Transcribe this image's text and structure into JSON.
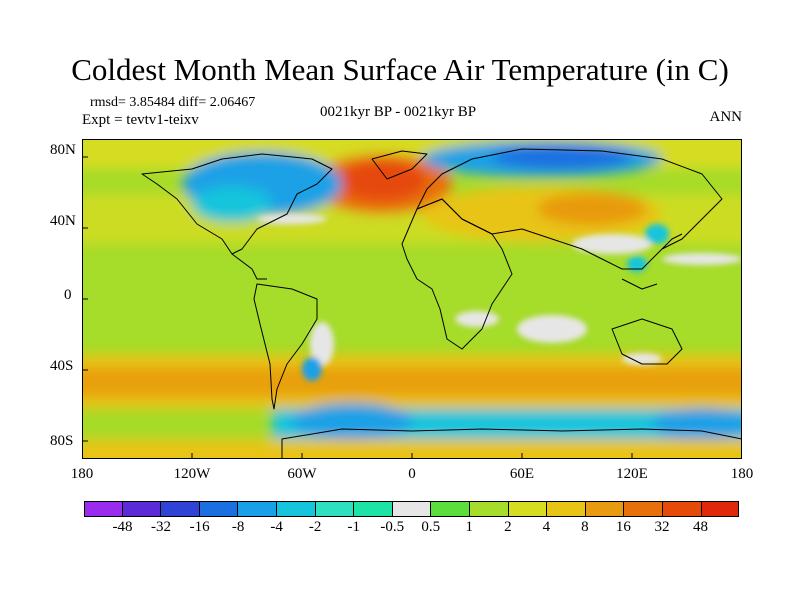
{
  "title": "Coldest Month Mean Surface Air Temperature (in C)",
  "stats": {
    "rmsd_label": "rmsd=",
    "rmsd": "3.85484",
    "diff_label": "diff=",
    "diff": "2.06467",
    "expt": "Expt = tevtv1-teixv"
  },
  "center_label": "0021kyr BP - 0021kyr BP",
  "season": "ANN",
  "axes": {
    "y_ticks": [
      "80N",
      "40N",
      "0",
      "40S",
      "80S"
    ],
    "x_ticks": [
      "180",
      "120W",
      "60W",
      "0",
      "60E",
      "120E",
      "180"
    ],
    "lon_range": [
      -180,
      180
    ],
    "lat_range": [
      -90,
      90
    ]
  },
  "colorbar": {
    "colors": [
      "#9a2cf0",
      "#5a2bd6",
      "#2f44d4",
      "#1c6fe0",
      "#1aa0e6",
      "#16c4dc",
      "#2ee0c0",
      "#1de4a6",
      "#e6e6e6",
      "#5cde3c",
      "#a6dc2a",
      "#d6dc20",
      "#e8c414",
      "#e89a10",
      "#e8700c",
      "#e64a08",
      "#e0280a"
    ],
    "labels": [
      "-48",
      "-32",
      "-16",
      "-8",
      "-4",
      "-2",
      "-1",
      "-0.5",
      "0.5",
      "1",
      "2",
      "4",
      "8",
      "16",
      "32",
      "48"
    ]
  }
}
